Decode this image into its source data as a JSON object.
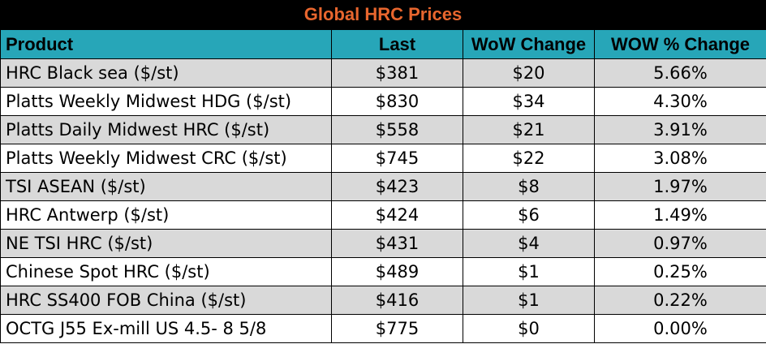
{
  "title": "Global HRC Prices",
  "colors": {
    "title_background": "#000000",
    "title_text": "#e8662e",
    "header_background": "#27a6b8",
    "row_shade": "#d9d9d9",
    "row_plain": "#ffffff"
  },
  "table": {
    "headers": [
      "Product",
      "Last",
      "WoW Change",
      "WOW % Change"
    ],
    "rows": [
      {
        "product": "HRC Black sea ($/st)",
        "last": "$381",
        "wow_change": "$20",
        "wow_pct": "5.66%"
      },
      {
        "product": "Platts Weekly Midwest HDG ($/st)",
        "last": "$830",
        "wow_change": "$34",
        "wow_pct": "4.30%"
      },
      {
        "product": "Platts Daily Midwest HRC ($/st)",
        "last": "$558",
        "wow_change": "$21",
        "wow_pct": "3.91%"
      },
      {
        "product": "Platts Weekly Midwest CRC ($/st)",
        "last": "$745",
        "wow_change": "$22",
        "wow_pct": "3.08%"
      },
      {
        "product": "TSI ASEAN ($/st)",
        "last": "$423",
        "wow_change": "$8",
        "wow_pct": "1.97%"
      },
      {
        "product": "HRC Antwerp ($/st)",
        "last": "$424",
        "wow_change": "$6",
        "wow_pct": "1.49%"
      },
      {
        "product": "NE TSI HRC ($/st)",
        "last": "$431",
        "wow_change": "$4",
        "wow_pct": "0.97%"
      },
      {
        "product": "Chinese Spot HRC ($/st)",
        "last": "$489",
        "wow_change": "$1",
        "wow_pct": "0.25%"
      },
      {
        "product": "HRC SS400 FOB China ($/st)",
        "last": "$416",
        "wow_change": "$1",
        "wow_pct": "0.22%"
      },
      {
        "product": "OCTG J55 Ex-mill US 4.5- 8 5/8",
        "last": "$775",
        "wow_change": "$0",
        "wow_pct": "0.00%"
      }
    ]
  }
}
